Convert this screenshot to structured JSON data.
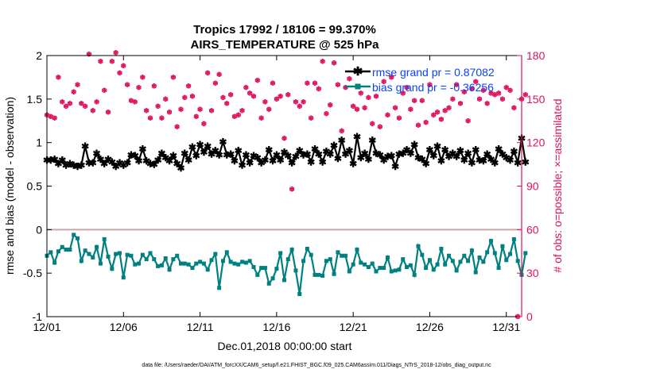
{
  "chart_data": {
    "type": "line",
    "title_line1": "Tropics 17992 / 18106 = 99.370%",
    "title_line2": "AIRS_TEMPERATURE @ 525 hPa",
    "xlabel": "Dec.01,2018 00:00:00 start",
    "ylabel_left": "rmse and bias (model - observation)",
    "ylabel_right": "# of obs: o=possible; ×=assimilated",
    "footer": "data file: /Users/raeder/DAI/ATM_forcXX/CAM6_setup/f.e21.FHIST_BGC.f09_025.CAM6assim.011/Diags_NTrS_2018-12/obs_diag_output.nc",
    "xlim": [
      0,
      31
    ],
    "ylim_left": [
      -1,
      2
    ],
    "ylim_right": [
      0,
      180
    ],
    "x_tick_values": [
      0,
      5,
      10,
      15,
      20,
      25,
      30
    ],
    "x_tick_labels": [
      "12/01",
      "12/06",
      "12/11",
      "12/16",
      "12/21",
      "12/26",
      "12/31"
    ],
    "y_left_tick_values": [
      -1,
      -0.5,
      0,
      0.5,
      1,
      1.5,
      2
    ],
    "y_left_tick_labels": [
      "-1",
      "-0.5",
      "0",
      "0.5",
      "1",
      "1.5",
      "2"
    ],
    "y_right_tick_values": [
      0,
      30,
      60,
      90,
      120,
      150,
      180
    ],
    "y_right_tick_labels": [
      "0",
      "30",
      "60",
      "90",
      "120",
      "150",
      "180"
    ],
    "legend_position": "top-right",
    "colors": {
      "rmse": "#000000",
      "bias": "#008080",
      "obs": "#e0115f",
      "zero_line": "#c8a8a8",
      "legend_text": "#0a40ff",
      "grid_tick": "#000000"
    },
    "series": [
      {
        "name": "rmse grand pr = 0.87082",
        "axis": "left",
        "x_start": 0,
        "x_step": 0.25,
        "values": [
          0.8,
          0.8,
          0.81,
          0.76,
          0.8,
          0.74,
          0.76,
          0.74,
          0.73,
          0.74,
          0.96,
          0.77,
          0.77,
          0.88,
          0.81,
          0.76,
          0.81,
          0.78,
          0.73,
          0.77,
          0.74,
          0.77,
          0.86,
          0.85,
          0.79,
          0.93,
          0.79,
          0.76,
          0.75,
          0.8,
          0.88,
          0.83,
          0.79,
          0.85,
          0.76,
          0.71,
          0.88,
          0.8,
          0.95,
          0.85,
          0.98,
          0.89,
          0.96,
          0.87,
          0.91,
          0.86,
          1.01,
          0.86,
          0.87,
          0.79,
          0.91,
          0.74,
          0.86,
          0.77,
          0.85,
          0.83,
          0.77,
          0.8,
          0.92,
          0.79,
          0.86,
          0.8,
          0.89,
          0.85,
          0.77,
          0.84,
          0.91,
          0.86,
          0.87,
          0.78,
          0.93,
          0.87,
          0.78,
          0.9,
          0.87,
          0.97,
          0.82,
          1.03,
          0.87,
          0.91,
          0.76,
          1.07,
          0.83,
          0.88,
          0.81,
          1.03,
          0.88,
          0.86,
          0.8,
          0.84,
          0.85,
          0.73,
          0.87,
          0.88,
          0.92,
          0.88,
          0.98,
          0.83,
          0.81,
          0.76,
          0.92,
          0.85,
          0.96,
          0.79,
          0.92,
          0.84,
          0.88,
          0.84,
          0.91,
          0.8,
          0.88,
          0.77,
          0.92,
          0.8,
          0.79,
          0.87,
          0.81,
          0.77,
          0.93,
          0.87,
          0.83,
          0.8,
          0.9,
          0.77,
          1.05,
          0.78
        ]
      },
      {
        "name": "bias grand pr = -0.36256",
        "axis": "left",
        "x_start": 0,
        "x_step": 0.25,
        "values": [
          -0.3,
          -0.26,
          -0.38,
          -0.25,
          -0.2,
          -0.23,
          -0.23,
          -0.06,
          -0.1,
          -0.36,
          -0.24,
          -0.28,
          -0.32,
          -0.2,
          -0.39,
          -0.11,
          -0.31,
          -0.45,
          -0.28,
          -0.27,
          -0.55,
          -0.29,
          -0.3,
          -0.4,
          -0.39,
          -0.29,
          -0.34,
          -0.27,
          -0.34,
          -0.42,
          -0.41,
          -0.33,
          -0.46,
          -0.34,
          -0.3,
          -0.39,
          -0.39,
          -0.4,
          -0.44,
          -0.39,
          -0.37,
          -0.39,
          -0.46,
          -0.35,
          -0.28,
          -0.67,
          -0.36,
          -0.26,
          -0.37,
          -0.39,
          -0.4,
          -0.37,
          -0.38,
          -0.36,
          -0.43,
          -0.52,
          -0.44,
          -0.44,
          -0.62,
          -0.56,
          -0.45,
          -0.27,
          -0.58,
          -0.34,
          -0.23,
          -0.47,
          -0.74,
          -0.36,
          -0.22,
          -0.29,
          -0.52,
          -0.52,
          -0.53,
          -0.36,
          -0.34,
          -0.51,
          -0.26,
          -0.3,
          -0.3,
          -0.48,
          -0.4,
          -0.23,
          -0.38,
          -0.4,
          -0.43,
          -0.39,
          -0.48,
          -0.44,
          -0.44,
          -0.32,
          -0.48,
          -0.47,
          -0.46,
          -0.34,
          -0.43,
          -0.41,
          -0.52,
          -0.19,
          -0.29,
          -0.44,
          -0.35,
          -0.46,
          -0.4,
          -0.22,
          -0.4,
          -0.3,
          -0.36,
          -0.47,
          -0.37,
          -0.3,
          -0.36,
          -0.24,
          -0.49,
          -0.32,
          -0.37,
          -0.26,
          -0.13,
          -0.27,
          -0.44,
          -0.19,
          -0.35,
          -0.28,
          -0.11,
          -0.36,
          -0.52,
          -0.27
        ]
      },
      {
        "name": "# of obs possible / assimilated",
        "axis": "right",
        "x_start": 0,
        "x_step": 0.25,
        "values": [
          139,
          138,
          137,
          165,
          148,
          145,
          147,
          155,
          160,
          147,
          145,
          181,
          142,
          148,
          176,
          156,
          141,
          176,
          182,
          168,
          173,
          160,
          149,
          148,
          158,
          165,
          142,
          137,
          159,
          145,
          137,
          150,
          141,
          165,
          131,
          143,
          151,
          159,
          152,
          138,
          143,
          133,
          168,
          142,
          161,
          167,
          151,
          147,
          153,
          138,
          139,
          142,
          158,
          154,
          152,
          163,
          137,
          148,
          143,
          161,
          150,
          152,
          123,
          153,
          88,
          148,
          145,
          148,
          161,
          137,
          161,
          157,
          176,
          140,
          146,
          175,
          160,
          128,
          158,
          164,
          145,
          143,
          154,
          144,
          151,
          133,
          152,
          131,
          162,
          139,
          165,
          144,
          137,
          154,
          158,
          143,
          149,
          132,
          149,
          134,
          160,
          139,
          141,
          136,
          142,
          144,
          150,
          160,
          147,
          155,
          135,
          157,
          162,
          150,
          156,
          147,
          154,
          153,
          154,
          150,
          158,
          156,
          144,
          0,
          150,
          153
        ]
      }
    ]
  }
}
